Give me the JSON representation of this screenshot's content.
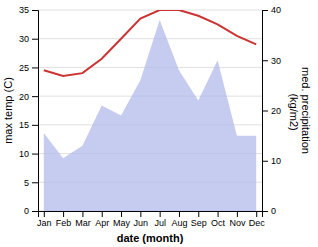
{
  "chart_data": {
    "type": "line",
    "categories": [
      "Jan",
      "Feb",
      "Mar",
      "Apr",
      "May",
      "Jun",
      "Jul",
      "Aug",
      "Sep",
      "Oct",
      "Nov",
      "Dec"
    ],
    "series": [
      {
        "type": "area",
        "axis": "y2",
        "color": "#b3baeb",
        "values": [
          15.5,
          10.5,
          13.0,
          21.0,
          19.0,
          26.0,
          38.0,
          28.0,
          22.0,
          30.0,
          15.0,
          15.0
        ]
      },
      {
        "type": "line",
        "color": "#cc3333",
        "values": [
          24.5,
          23.5,
          24.0,
          26.5,
          30.0,
          33.5,
          35.0,
          35.0,
          34.0,
          32.5,
          30.5,
          29.0
        ]
      }
    ],
    "xlabel": "date (month)",
    "ylabel": "max temp (C)",
    "y2label": "med. precipitation\n (kg/m2)",
    "ylim": [
      0,
      35
    ],
    "yticks": [
      0,
      5,
      10,
      15,
      20,
      25,
      30,
      35
    ],
    "y2lim": [
      0,
      40
    ],
    "y2ticks": [
      0,
      10,
      20,
      30,
      40
    ],
    "grid": true
  }
}
